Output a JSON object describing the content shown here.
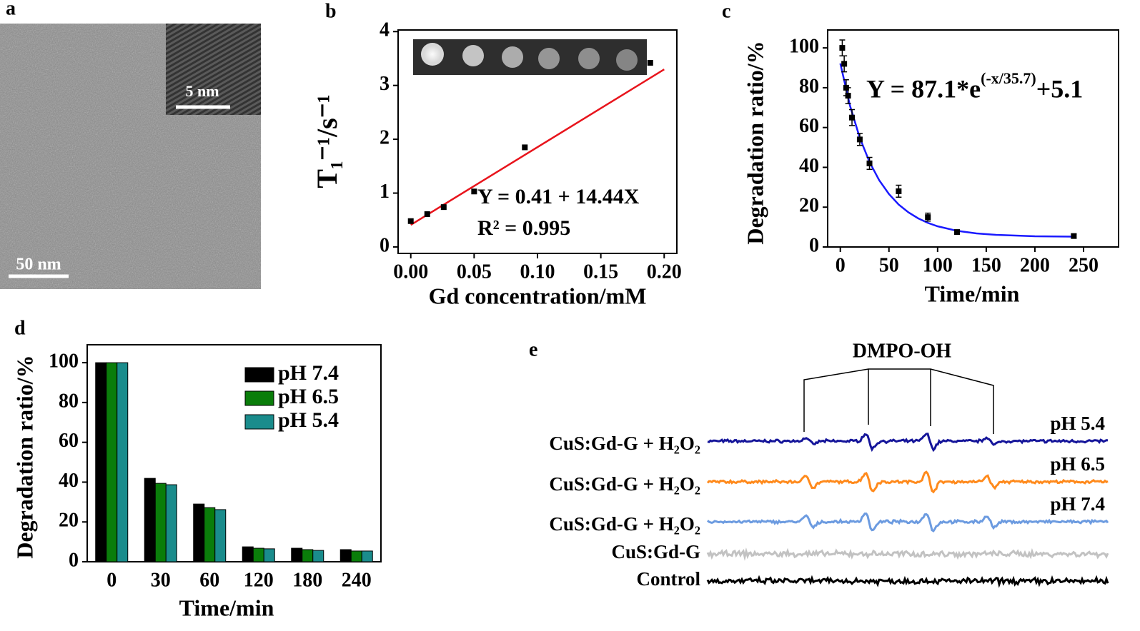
{
  "panel_a": {
    "label": "a",
    "inset_scale": "5 nm",
    "scale": "50 nm"
  },
  "chart_data": [
    {
      "type": "scatter",
      "label": "b",
      "xlabel": "Gd concentration/mM",
      "ylabel": "T₁⁻¹/s⁻¹",
      "x": [
        0,
        0.013,
        0.026,
        0.05,
        0.09,
        0.189
      ],
      "values": [
        0.48,
        0.61,
        0.74,
        1.03,
        1.85,
        3.42
      ],
      "color": "#000000",
      "fit": {
        "x": [
          0,
          0.2
        ],
        "values": [
          0.41,
          3.298
        ],
        "color": "#e8141c"
      },
      "annotations": [
        "Y = 0.41 + 14.44X",
        "R² = 0.995"
      ],
      "xlim": [
        -0.01,
        0.21
      ],
      "ylim": [
        -0.12,
        4.03
      ],
      "xticks": [
        {
          "value": 0,
          "label": "0.00"
        },
        {
          "value": 0.05,
          "label": "0.05"
        },
        {
          "value": 0.1,
          "label": "0.10"
        },
        {
          "value": 0.15,
          "label": "0.15"
        },
        {
          "value": 0.2,
          "label": "0.20"
        }
      ],
      "yticks": [
        0,
        1,
        2,
        3,
        4
      ]
    },
    {
      "type": "scatter",
      "label": "c",
      "xlabel": "Time/min",
      "ylabel": "Degradation ratio/%",
      "x": [
        2,
        4,
        6,
        8,
        12,
        20,
        30,
        60,
        90,
        120,
        240
      ],
      "values": [
        100,
        92,
        80,
        76,
        65,
        54,
        42,
        28,
        15,
        7.5,
        5.5
      ],
      "errors": [
        4,
        4,
        4,
        4,
        4,
        3,
        3,
        3,
        2,
        1,
        1
      ],
      "color": "#000000",
      "fit": {
        "x": [
          0,
          10,
          20,
          30,
          40,
          50,
          60,
          70,
          80,
          90,
          100,
          120,
          140,
          160,
          200,
          240
        ],
        "values": [
          92.2,
          70.9,
          54.85,
          42.7,
          33.5,
          26.6,
          21.3,
          17.4,
          14.4,
          12.1,
          10.4,
          8.1,
          6.8,
          6.1,
          5.4,
          5.2
        ],
        "color": "#1a1aff"
      },
      "annotations": [
        "Y = 87.1*e",
        "(-x/35.7)",
        "+5.1"
      ],
      "xlim": [
        -13,
        286
      ],
      "ylim": [
        0,
        109
      ],
      "xticks": [
        0,
        50,
        100,
        150,
        200,
        250
      ],
      "yticks": [
        0,
        20,
        40,
        60,
        80,
        100
      ]
    },
    {
      "type": "bar",
      "label": "d",
      "xlabel": "Time/min",
      "ylabel": "Degradation ratio/%",
      "categories": [
        "0",
        "30",
        "60",
        "120",
        "180",
        "240"
      ],
      "series": [
        {
          "name": "pH 7.4",
          "color": "#000000",
          "values": [
            100,
            41.9,
            29,
            7.5,
            6.8,
            6.1
          ]
        },
        {
          "name": "pH 6.5",
          "color": "#0a7d0a",
          "values": [
            100,
            39.4,
            27.2,
            6.8,
            6.1,
            5.4
          ]
        },
        {
          "name": "pH 5.4",
          "color": "#1a8c8c",
          "values": [
            100,
            38.7,
            26.2,
            6.5,
            5.7,
            5.4
          ]
        }
      ],
      "legend": "upper right",
      "ylim": [
        0,
        109
      ],
      "yticks": [
        0,
        20,
        40,
        60,
        80,
        100
      ]
    }
  ],
  "panel_e": {
    "label": "e",
    "title": "DMPO-OH",
    "traces": [
      {
        "label": "CuS:Gd-G + H₂O₂",
        "condition": "pH 5.4",
        "color": "#15159a"
      },
      {
        "label": "CuS:Gd-G + H₂O₂",
        "condition": "pH 6.5",
        "color": "#ff8a1c"
      },
      {
        "label": "CuS:Gd-G + H₂O₂",
        "condition": "pH 7.4",
        "color": "#6c9be0"
      },
      {
        "label": "CuS:Gd-G",
        "color": "#c2c2c2"
      },
      {
        "label": "Control",
        "color": "#000000"
      }
    ]
  }
}
